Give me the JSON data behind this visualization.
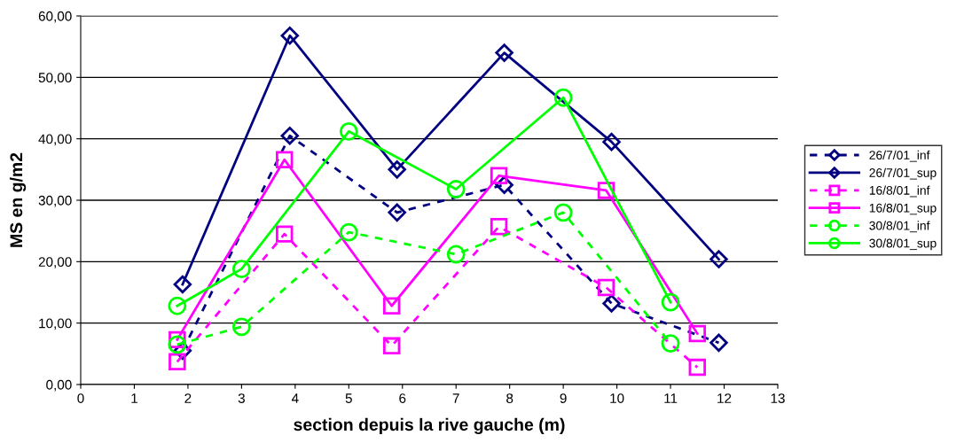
{
  "chart_data": {
    "type": "line",
    "xlabel": "section depuis la rive gauche (m)",
    "ylabel": "MS en g/m2",
    "xlim": [
      0,
      13
    ],
    "xticks": [
      0,
      1,
      2,
      3,
      4,
      5,
      6,
      7,
      8,
      9,
      10,
      11,
      12,
      13
    ],
    "ylim": [
      0,
      60
    ],
    "yticks": [
      {
        "value": 0,
        "label": "0,00"
      },
      {
        "value": 10,
        "label": "10,00"
      },
      {
        "value": 20,
        "label": "20,00"
      },
      {
        "value": 30,
        "label": "30,00"
      },
      {
        "value": 40,
        "label": "40,00"
      },
      {
        "value": 50,
        "label": "50,00"
      },
      {
        "value": 60,
        "label": "60,00"
      }
    ],
    "grid": "y",
    "legend": "right",
    "series": [
      {
        "name": "26/7/01_inf",
        "color": "#000080",
        "marker": "diamond",
        "line_style": "dashed",
        "x": [
          1.9,
          3.9,
          5.9,
          7.9,
          9.9,
          11.9
        ],
        "values": [
          5.5,
          40.5,
          28,
          32.5,
          13.2,
          6.8
        ]
      },
      {
        "name": "26/7/01_sup",
        "color": "#000080",
        "marker": "diamond",
        "line_style": "solid",
        "x": [
          1.9,
          3.9,
          5.9,
          7.9,
          9.9,
          11.9
        ],
        "values": [
          16.3,
          56.8,
          35,
          54,
          39.5,
          20.4
        ]
      },
      {
        "name": "16/8/01_inf",
        "color": "#ff00ff",
        "marker": "square",
        "line_style": "dashed",
        "x": [
          1.8,
          3.8,
          5.8,
          7.8,
          9.8,
          11.5
        ],
        "values": [
          3.7,
          24.5,
          6.3,
          25.7,
          15.8,
          2.8
        ]
      },
      {
        "name": "16/8/01_sup",
        "color": "#ff00ff",
        "marker": "square",
        "line_style": "solid",
        "x": [
          1.8,
          3.8,
          5.8,
          7.8,
          9.8,
          11.5
        ],
        "values": [
          7.3,
          36.6,
          12.8,
          34,
          31.6,
          8.3
        ]
      },
      {
        "name": "30/8/01_inf",
        "color": "#00ff00",
        "marker": "circle",
        "line_style": "dashed",
        "x": [
          1.8,
          3,
          5,
          7,
          9,
          11
        ],
        "values": [
          6.5,
          9.4,
          24.8,
          21.2,
          28,
          6.7
        ]
      },
      {
        "name": "30/8/01_sup",
        "color": "#00ff00",
        "marker": "circle",
        "line_style": "solid",
        "x": [
          1.8,
          3,
          5,
          7,
          9,
          11
        ],
        "values": [
          12.8,
          18.8,
          41.2,
          31.8,
          46.7,
          13.4
        ]
      }
    ]
  }
}
